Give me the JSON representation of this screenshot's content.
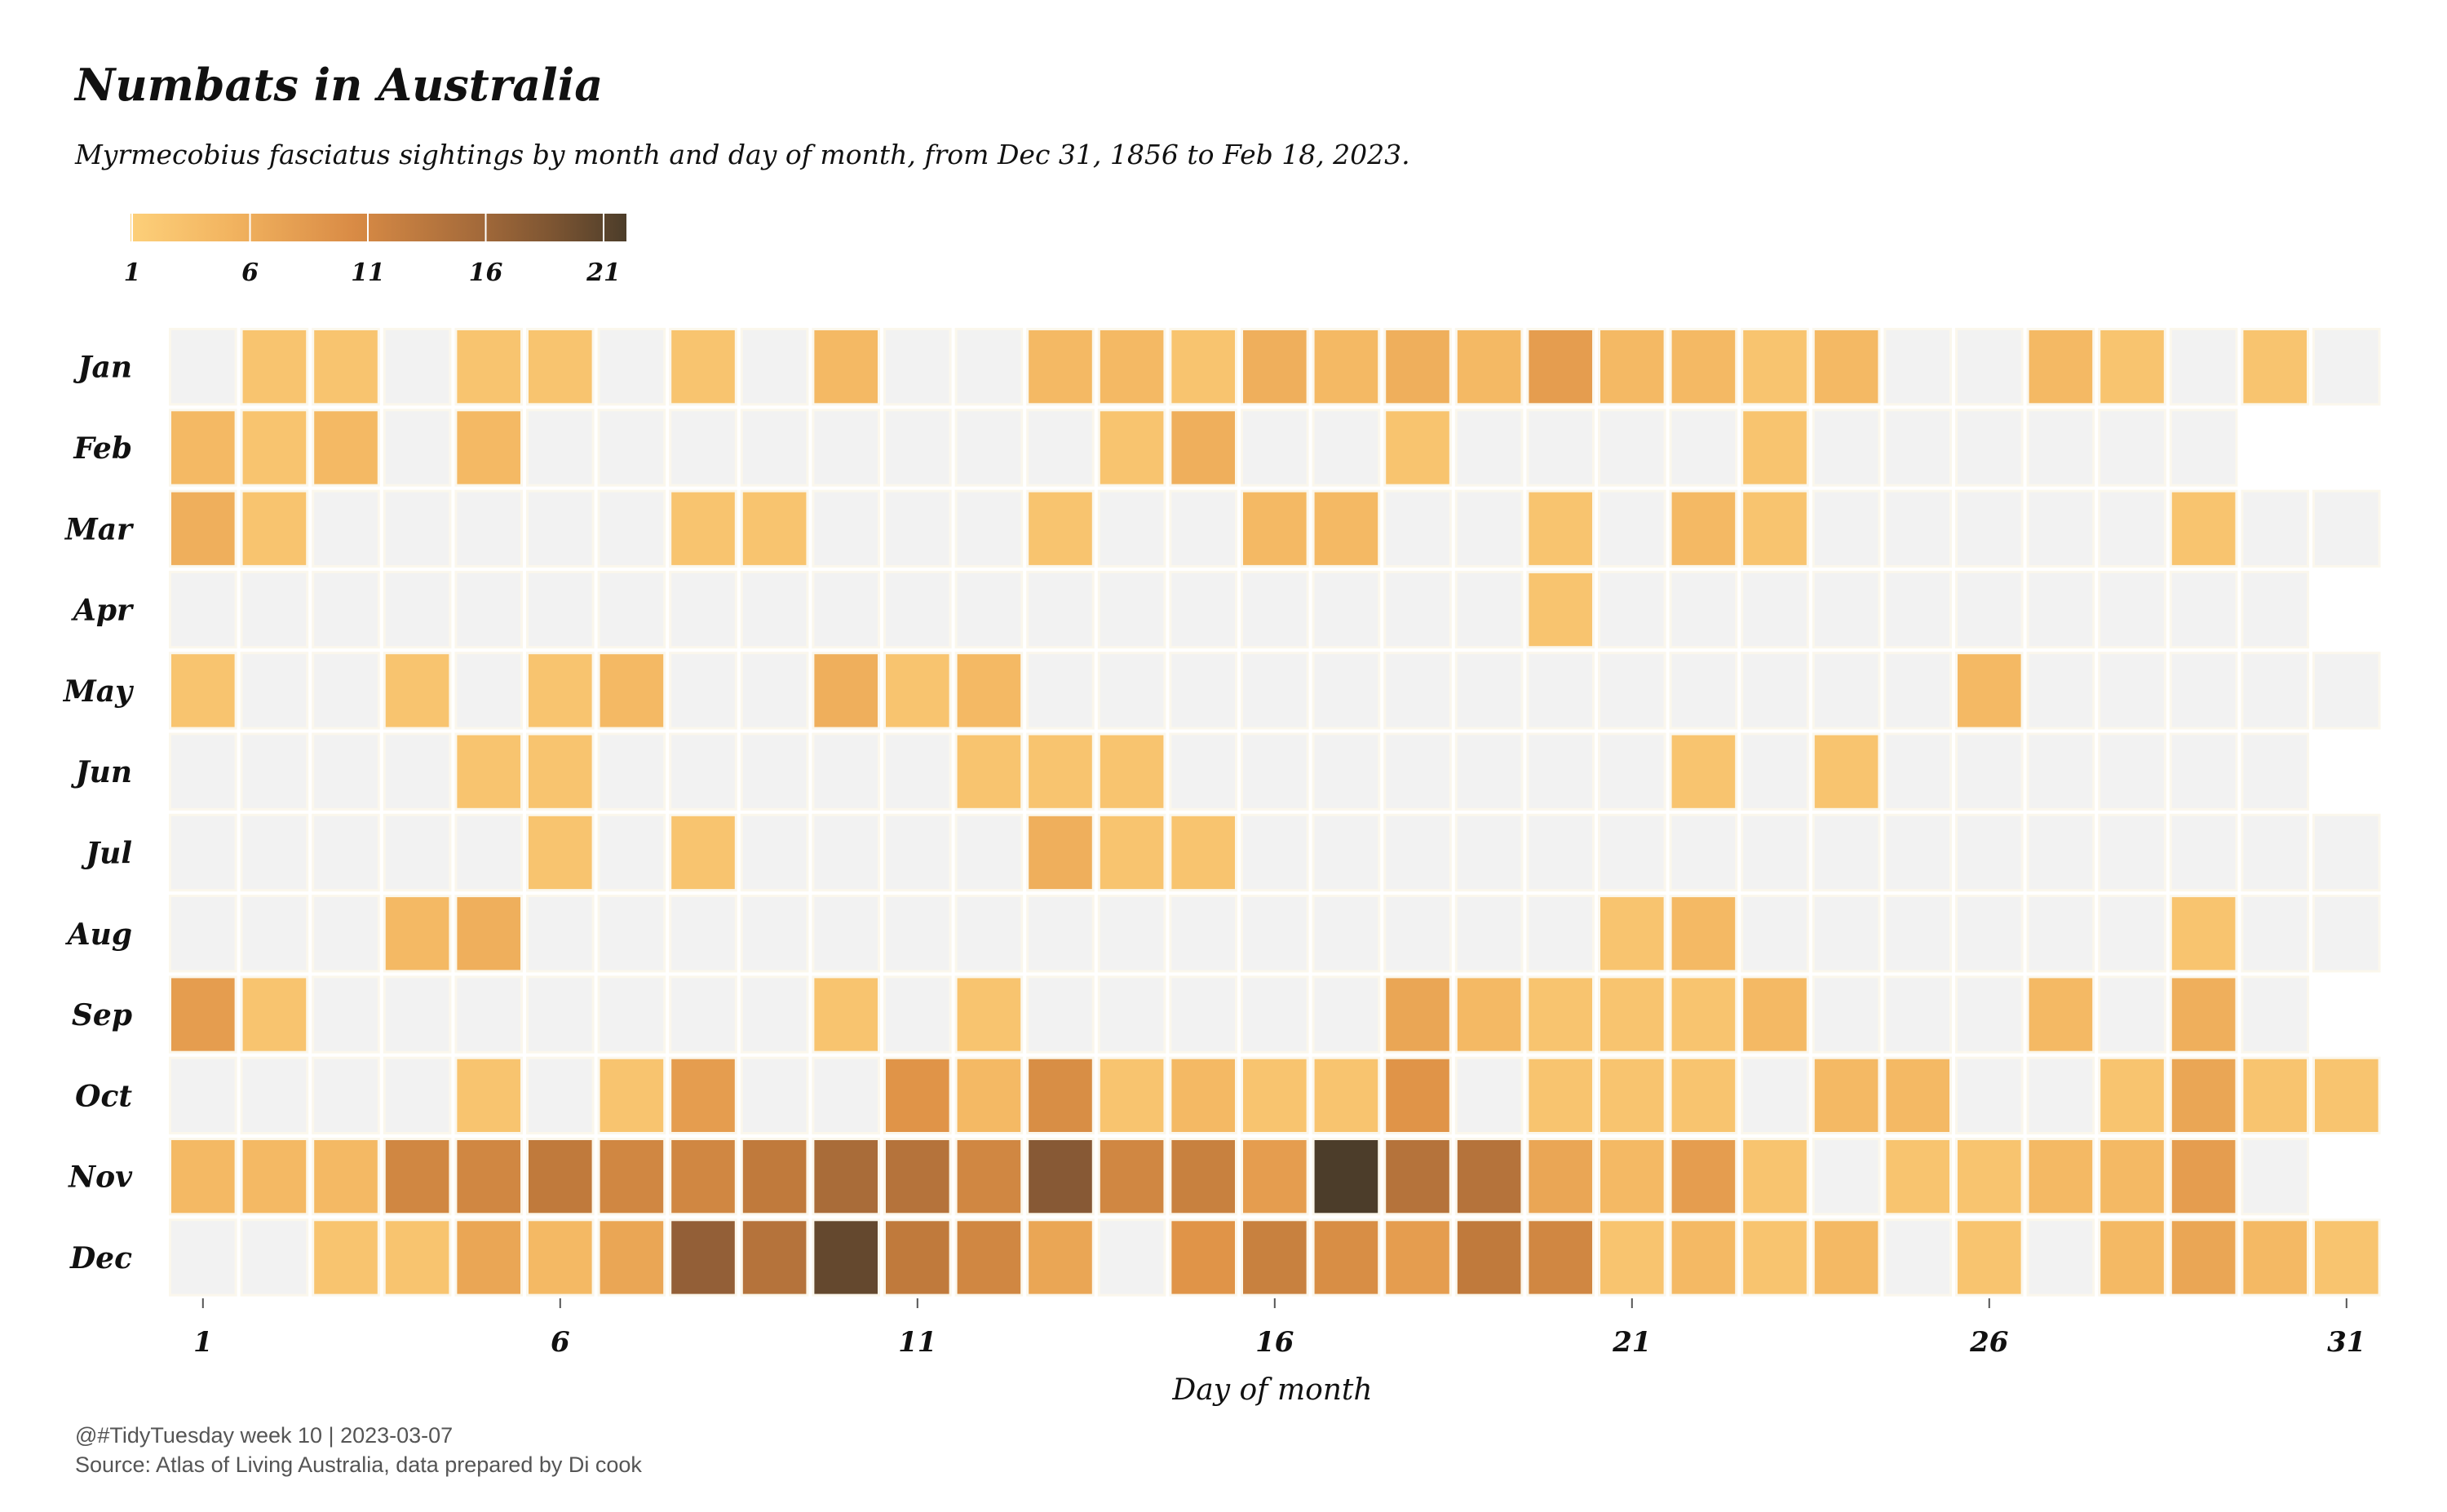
{
  "title": "Numbats in Australia",
  "subtitle": "Myrmecobius fasciatus sightings by month and day of month, from Dec 31, 1856 to Feb 18, 2023.",
  "caption": {
    "line1": "@#TidyTuesday week 10 | 2023-03-07",
    "line2": "Source: Atlas of Living Australia, data prepared by Di cook"
  },
  "colors": {
    "background": "#ffffff",
    "empty_tile": "#f2f2f2",
    "tile_border": "#fbf7ec",
    "scale": [
      "#fdd07a",
      "#f2b460",
      "#e09448",
      "#c07a3c",
      "#8e5c36",
      "#4c3d2a"
    ]
  },
  "chart_data": {
    "type": "heatmap",
    "title": "",
    "xlabel": "Day of month",
    "ylabel": "",
    "x_ticks": [
      1,
      6,
      11,
      16,
      21,
      26,
      31
    ],
    "months": [
      "Jan",
      "Feb",
      "Mar",
      "Apr",
      "May",
      "Jun",
      "Jul",
      "Aug",
      "Sep",
      "Oct",
      "Nov",
      "Dec"
    ],
    "days_in_month": [
      31,
      29,
      31,
      30,
      31,
      30,
      31,
      31,
      30,
      31,
      30,
      31
    ],
    "legend": {
      "position": "top-left",
      "min": 1,
      "max": 21,
      "ticks": [
        1,
        6,
        11,
        16,
        21
      ]
    },
    "grid": false,
    "counts": [
      [
        0,
        2,
        2,
        0,
        2,
        2,
        0,
        2,
        0,
        3,
        0,
        0,
        3,
        3,
        2,
        4,
        3,
        4,
        3,
        6,
        3,
        3,
        2,
        3,
        0,
        0,
        3,
        2,
        0,
        2,
        0
      ],
      [
        3,
        2,
        3,
        0,
        3,
        0,
        0,
        0,
        0,
        0,
        0,
        0,
        0,
        2,
        4,
        0,
        0,
        2,
        0,
        0,
        0,
        0,
        2,
        0,
        0,
        0,
        0,
        0,
        0
      ],
      [
        4,
        2,
        0,
        0,
        0,
        0,
        0,
        2,
        2,
        0,
        0,
        0,
        2,
        0,
        0,
        3,
        3,
        0,
        0,
        2,
        0,
        3,
        2,
        0,
        0,
        0,
        0,
        0,
        2,
        0,
        0
      ],
      [
        0,
        0,
        0,
        0,
        0,
        0,
        0,
        0,
        0,
        0,
        0,
        0,
        0,
        0,
        0,
        0,
        0,
        0,
        0,
        2,
        0,
        0,
        0,
        0,
        0,
        0,
        0,
        0,
        0,
        0
      ],
      [
        2,
        0,
        0,
        2,
        0,
        2,
        3,
        0,
        0,
        4,
        2,
        3,
        0,
        0,
        0,
        0,
        0,
        0,
        0,
        0,
        0,
        0,
        0,
        0,
        0,
        3,
        0,
        0,
        0,
        0,
        0
      ],
      [
        0,
        0,
        0,
        0,
        2,
        2,
        0,
        0,
        0,
        0,
        0,
        2,
        2,
        2,
        0,
        0,
        0,
        0,
        0,
        0,
        0,
        2,
        0,
        2,
        0,
        0,
        0,
        0,
        0,
        0
      ],
      [
        0,
        0,
        0,
        0,
        0,
        2,
        0,
        2,
        0,
        0,
        0,
        0,
        4,
        2,
        2,
        0,
        0,
        0,
        0,
        0,
        0,
        0,
        0,
        0,
        0,
        0,
        0,
        0,
        0,
        0,
        0
      ],
      [
        0,
        0,
        0,
        3,
        4,
        0,
        0,
        0,
        0,
        0,
        0,
        0,
        0,
        0,
        0,
        0,
        0,
        0,
        0,
        0,
        2,
        3,
        0,
        0,
        0,
        0,
        0,
        0,
        2,
        0,
        0
      ],
      [
        6,
        2,
        0,
        0,
        0,
        0,
        0,
        0,
        0,
        2,
        0,
        2,
        0,
        0,
        0,
        0,
        0,
        5,
        3,
        2,
        2,
        2,
        3,
        0,
        0,
        0,
        3,
        0,
        4,
        0
      ],
      [
        0,
        0,
        0,
        0,
        2,
        0,
        2,
        6,
        0,
        0,
        7,
        3,
        8,
        2,
        3,
        2,
        2,
        7,
        0,
        2,
        2,
        2,
        0,
        3,
        3,
        0,
        0,
        2,
        5,
        2,
        2
      ],
      [
        3,
        3,
        3,
        9,
        9,
        11,
        9,
        9,
        11,
        13,
        12,
        9,
        16,
        9,
        10,
        6,
        21,
        12,
        12,
        5,
        3,
        6,
        2,
        0,
        2,
        2,
        3,
        3,
        6,
        0
      ],
      [
        0,
        0,
        2,
        2,
        5,
        3,
        5,
        15,
        12,
        19,
        11,
        9,
        5,
        0,
        7,
        10,
        8,
        6,
        11,
        9,
        2,
        3,
        2,
        3,
        0,
        2,
        0,
        3,
        5,
        3,
        2
      ]
    ]
  }
}
